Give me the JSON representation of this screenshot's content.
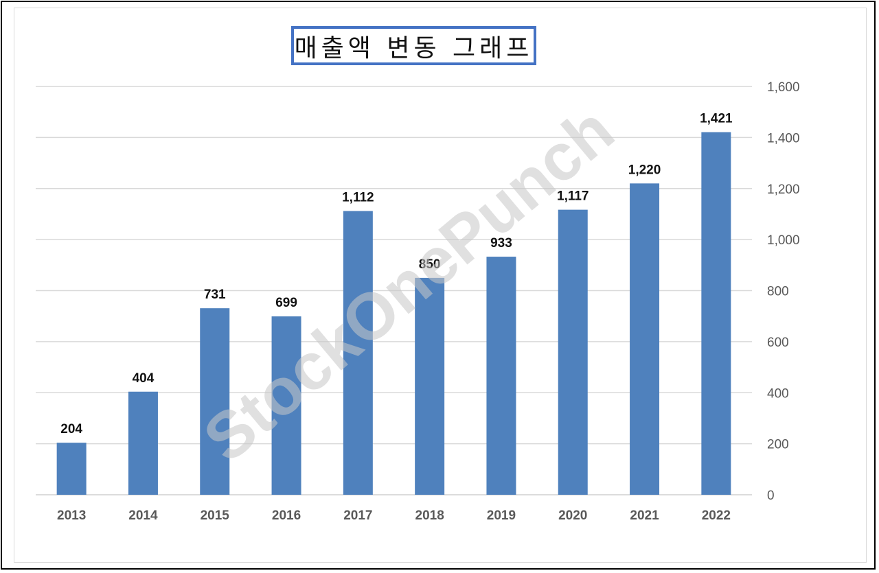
{
  "chart_data": {
    "type": "bar",
    "title": "매출액 변동 그래프",
    "categories": [
      "2013",
      "2014",
      "2015",
      "2016",
      "2017",
      "2018",
      "2019",
      "2020",
      "2021",
      "2022"
    ],
    "values": [
      204,
      404,
      731,
      699,
      1112,
      850,
      933,
      1117,
      1220,
      1421
    ],
    "value_labels": [
      "204",
      "404",
      "731",
      "699",
      "1,112",
      "850",
      "933",
      "1,117",
      "1,220",
      "1,421"
    ],
    "ylim": [
      0,
      1600
    ],
    "yticks": [
      0,
      200,
      400,
      600,
      800,
      1000,
      1200,
      1400,
      1600
    ],
    "ytick_labels": [
      "0",
      "200",
      "400",
      "600",
      "800",
      "1,000",
      "1,200",
      "1,400",
      "1,600"
    ],
    "y_axis_side": "right",
    "grid": true,
    "bar_color": "#4f81bd",
    "xlabel": "",
    "ylabel": ""
  },
  "watermark": "StockOnePunch"
}
